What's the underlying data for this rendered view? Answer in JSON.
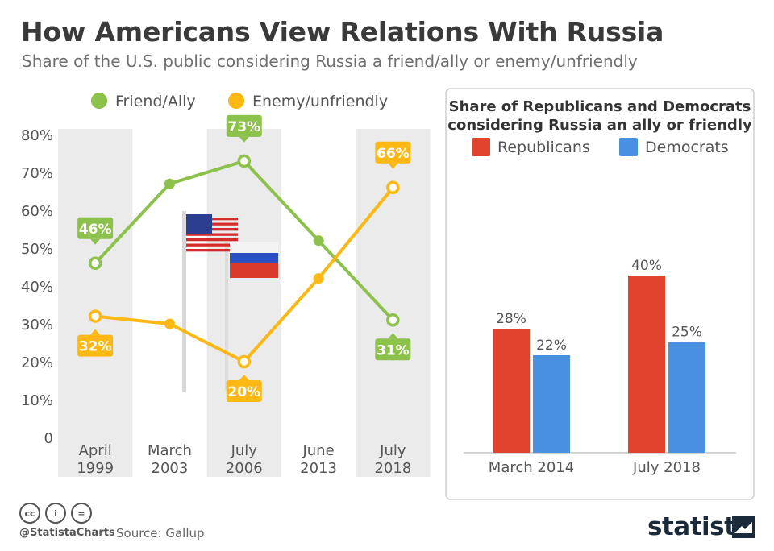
{
  "title": "How Americans View Relations With Russia",
  "subtitle": "Share of the U.S. public considering Russia a friend/ally or enemy/unfriendly",
  "colors": {
    "friend": "#8cc14c",
    "enemy": "#fdb813",
    "republicans": "#e2432f",
    "democrats": "#4a90e2",
    "band": "#ebebeb"
  },
  "chart_data": [
    {
      "type": "line",
      "categories": [
        "April\n1999",
        "March\n2003",
        "July\n2006",
        "June\n2013",
        "July\n2018"
      ],
      "series": [
        {
          "name": "Friend/Ally",
          "values": [
            46,
            67,
            73,
            52,
            31
          ],
          "labels": [
            "46%",
            null,
            "73%",
            null,
            "31%"
          ]
        },
        {
          "name": "Enemy/unfriendly",
          "values": [
            32,
            30,
            20,
            42,
            66
          ],
          "labels": [
            "32%",
            null,
            "20%",
            null,
            "66%"
          ]
        }
      ],
      "yticks": [
        "80%",
        "70%",
        "60%",
        "50%",
        "40%",
        "30%",
        "20%",
        "10%",
        "0"
      ],
      "ylim": [
        0,
        80
      ],
      "legend": "top",
      "grid": false
    },
    {
      "type": "bar",
      "title": "Share of Republicans and Democrats considering Russia an ally or friendly",
      "categories": [
        "March 2014",
        "July 2018"
      ],
      "series": [
        {
          "name": "Republicans",
          "values": [
            28,
            40
          ],
          "labels": [
            "28%",
            "40%"
          ]
        },
        {
          "name": "Democrats",
          "values": [
            22,
            25
          ],
          "labels": [
            "22%",
            "25%"
          ]
        }
      ],
      "legend": "top"
    }
  ],
  "footer": {
    "icons": [
      "creative-commons-icon",
      "attribution-icon",
      "no-derivatives-icon"
    ],
    "cc_glyphs": [
      "cc",
      "i",
      "="
    ],
    "handle": "@StatistaCharts",
    "source": "Source: Gallup",
    "brand": "statista"
  }
}
